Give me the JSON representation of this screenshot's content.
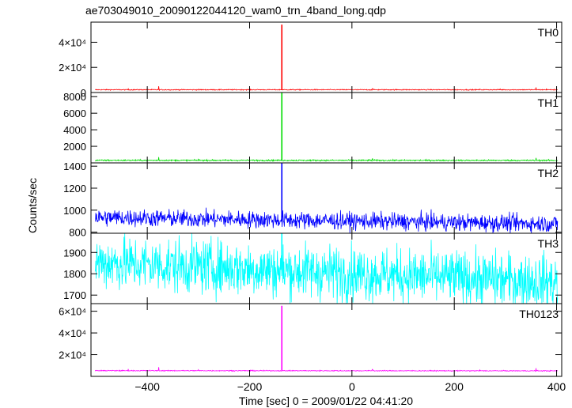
{
  "chart_data": {
    "type": "line",
    "title": "ae703049010_20090122044120_wam0_trn_4band_long.qdp",
    "xlabel": "Time [sec] 0 = 2009/01/22 04:41:20",
    "ylabel": "Counts/sec",
    "xlim": [
      -510,
      410
    ],
    "x_ticks": [
      -400,
      -200,
      0,
      200,
      400
    ],
    "x_tick_labels": [
      "−400",
      "−200",
      "0",
      "200",
      "400"
    ],
    "burst_time": -137,
    "series": [
      {
        "name": "TH0",
        "color": "#ff0000",
        "ylim": [
          0,
          56000
        ],
        "y_ticks": [
          0,
          20000,
          40000
        ],
        "y_tick_labels": [
          "0",
          "2×10⁴",
          "4×10⁴"
        ],
        "baseline_start": 2200,
        "baseline_end": 2200,
        "noise": 250,
        "peak": 54000,
        "spikes": [
          [
            -437,
            3000
          ],
          [
            -378,
            5000
          ],
          [
            -300,
            2600
          ],
          [
            -200,
            2600
          ],
          [
            40,
            3000
          ],
          [
            100,
            2600
          ],
          [
            250,
            2600
          ],
          [
            290,
            2800
          ],
          [
            360,
            4000
          ],
          [
            380,
            2800
          ]
        ]
      },
      {
        "name": "TH1",
        "color": "#00dd00",
        "ylim": [
          0,
          8500
        ],
        "y_ticks": [
          2000,
          4000,
          6000,
          8000
        ],
        "y_tick_labels": [
          "2000",
          "4000",
          "6000",
          "8000"
        ],
        "baseline_start": 310,
        "baseline_end": 300,
        "noise": 60,
        "peak": 8500,
        "spikes": [
          [
            -378,
            700
          ],
          [
            -300,
            500
          ],
          [
            40,
            500
          ],
          [
            360,
            600
          ]
        ]
      },
      {
        "name": "TH2",
        "color": "#0000ff",
        "ylim": [
          790,
          1430
        ],
        "y_ticks": [
          800,
          1000,
          1200,
          1400
        ],
        "y_tick_labels": [
          "800",
          "1000",
          "1200",
          "1400"
        ],
        "baseline_start": 935,
        "baseline_end": 875,
        "noise": 55,
        "peak": 1430,
        "spikes": []
      },
      {
        "name": "TH3",
        "color": "#00ffff",
        "ylim": [
          1660,
          1990
        ],
        "y_ticks": [
          1700,
          1800,
          1900
        ],
        "y_tick_labels": [
          "1700",
          "1800",
          "1900"
        ],
        "baseline_start": 1855,
        "baseline_end": 1760,
        "noise": 90,
        "peak": 1990,
        "spikes": []
      },
      {
        "name": "TH0123",
        "color": "#ff00ff",
        "ylim": [
          0,
          67000
        ],
        "y_ticks": [
          20000,
          40000,
          60000
        ],
        "y_tick_labels": [
          "2×10⁴",
          "4×10⁴",
          "6×10⁴"
        ],
        "baseline_start": 5300,
        "baseline_end": 5100,
        "noise": 300,
        "peak": 65000,
        "spikes": [
          [
            -437,
            6800
          ],
          [
            -378,
            8500
          ],
          [
            -300,
            6200
          ],
          [
            40,
            6500
          ],
          [
            250,
            6000
          ],
          [
            360,
            7500
          ]
        ]
      }
    ]
  }
}
